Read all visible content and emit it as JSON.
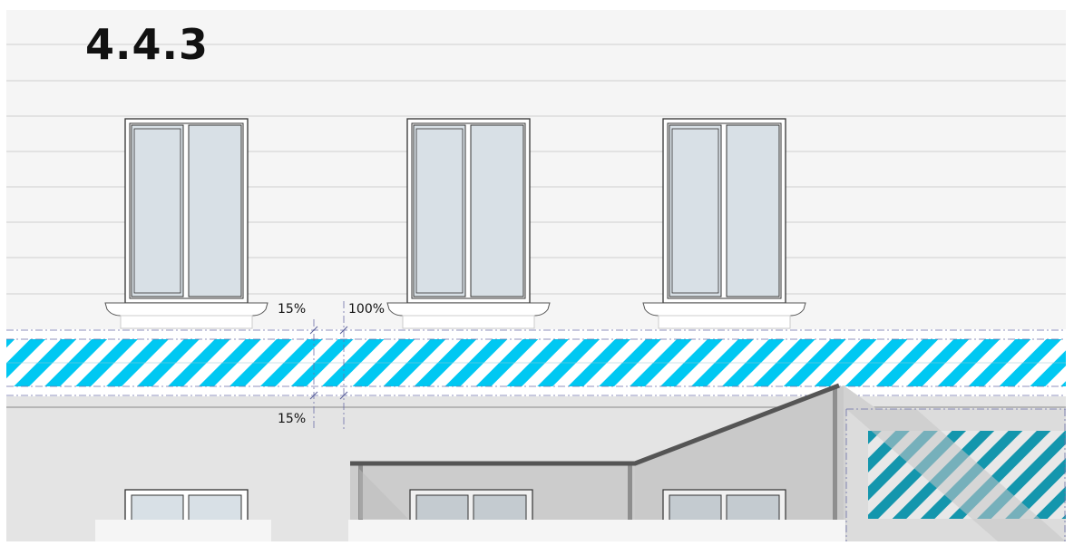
{
  "figure": {
    "heading": "4.4.3",
    "dimension_labels": {
      "upper_band_offset": "15%",
      "band_height": "100%",
      "lower_band_offset": "15%"
    }
  },
  "colors": {
    "background": "#f5f5f5",
    "siding_line": "#cfcfcf",
    "window_frame": "#333333",
    "window_glass": "#d8e0e6",
    "stripe_accent": "#00c8f2",
    "stripe_dark": "#1496ad",
    "lower_wall": "#e4e4e4",
    "canopy_fill": "#cccccc",
    "canopy_roof": "#555555",
    "guide_line": "#6b6fa8"
  },
  "icons": [
    "cross-dimension-marker"
  ]
}
